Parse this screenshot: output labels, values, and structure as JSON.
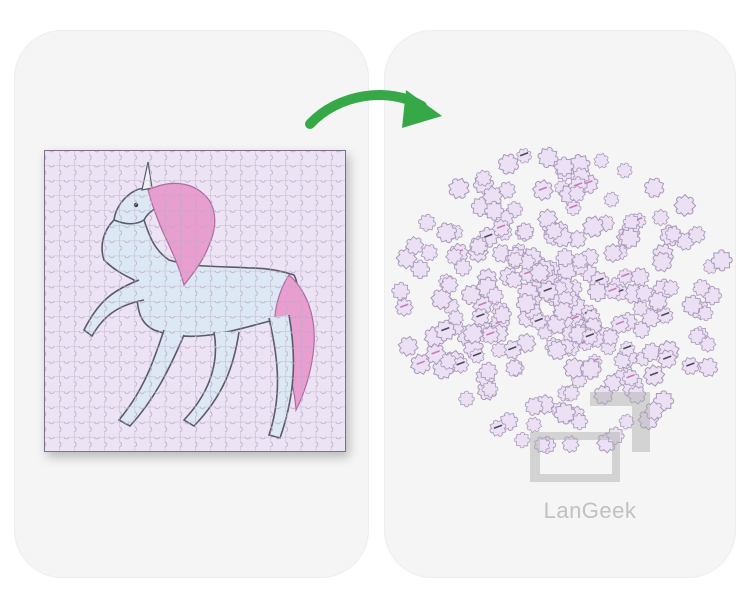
{
  "illustration": {
    "left_panel": {
      "subject": "unicorn-icon",
      "board_color": "#ece3f4",
      "line_color": "#9a8aa8",
      "mane_color": "#e89fd0",
      "body_color": "#dde8f5"
    },
    "arrow": {
      "icon": "curved-arrow-icon",
      "color": "#37a848"
    },
    "right_panel": {
      "subject": "scattered-puzzle-pieces-icon",
      "piece_color": "#ece0f5"
    }
  },
  "watermark": {
    "brand": "LanGeek",
    "icon": "langeek-logo-icon"
  }
}
